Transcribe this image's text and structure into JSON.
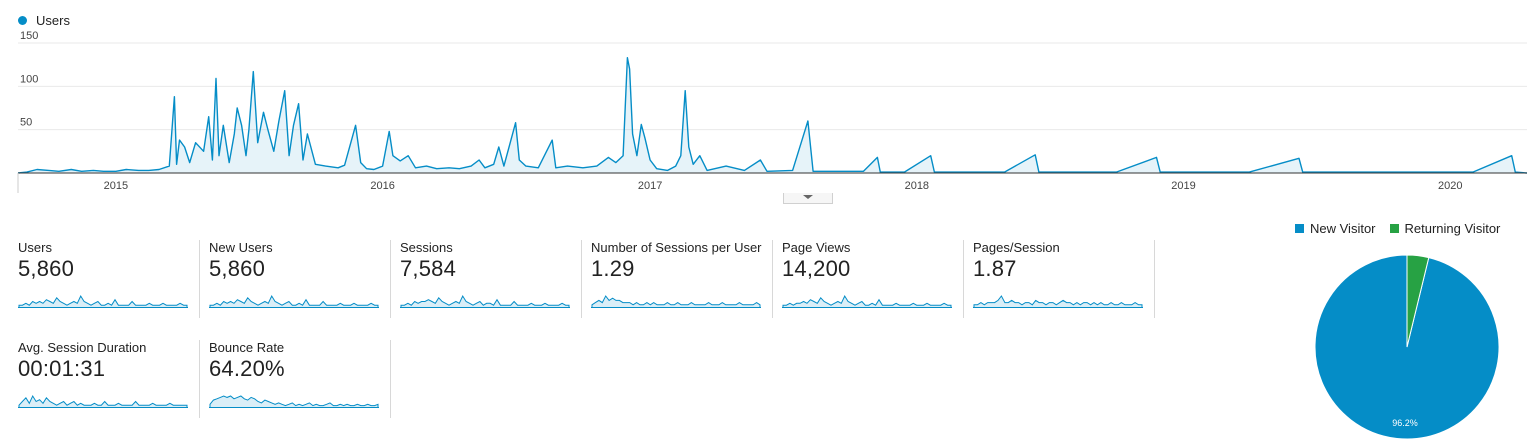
{
  "colors": {
    "primary": "#058dc7",
    "secondary": "#27a244",
    "axis": "#333333",
    "grid": "#e9e9e9",
    "text": "#444444"
  },
  "chart_data": [
    {
      "type": "line",
      "title": "",
      "series": [
        {
          "name": "Users",
          "points": [
            [
              "2014-09-01",
              1
            ],
            [
              "2014-09-15",
              4
            ],
            [
              "2014-10-01",
              3
            ],
            [
              "2014-10-15",
              2
            ],
            [
              "2014-11-01",
              4
            ],
            [
              "2014-11-15",
              2
            ],
            [
              "2014-12-01",
              3
            ],
            [
              "2014-12-15",
              2
            ],
            [
              "2015-01-01",
              2
            ],
            [
              "2015-01-15",
              4
            ],
            [
              "2015-02-01",
              3
            ],
            [
              "2015-02-15",
              3
            ],
            [
              "2015-03-01",
              4
            ],
            [
              "2015-03-15",
              8
            ],
            [
              "2015-03-22",
              88
            ],
            [
              "2015-03-25",
              10
            ],
            [
              "2015-03-29",
              38
            ],
            [
              "2015-04-05",
              30
            ],
            [
              "2015-04-12",
              12
            ],
            [
              "2015-04-20",
              35
            ],
            [
              "2015-05-01",
              25
            ],
            [
              "2015-05-08",
              65
            ],
            [
              "2015-05-13",
              15
            ],
            [
              "2015-05-18",
              109
            ],
            [
              "2015-05-22",
              20
            ],
            [
              "2015-05-28",
              55
            ],
            [
              "2015-06-05",
              12
            ],
            [
              "2015-06-12",
              45
            ],
            [
              "2015-06-16",
              75
            ],
            [
              "2015-06-22",
              55
            ],
            [
              "2015-06-28",
              20
            ],
            [
              "2015-07-02",
              50
            ],
            [
              "2015-07-08",
              117
            ],
            [
              "2015-07-14",
              35
            ],
            [
              "2015-07-22",
              70
            ],
            [
              "2015-07-28",
              50
            ],
            [
              "2015-08-05",
              25
            ],
            [
              "2015-08-12",
              60
            ],
            [
              "2015-08-20",
              95
            ],
            [
              "2015-08-26",
              20
            ],
            [
              "2015-09-01",
              55
            ],
            [
              "2015-09-08",
              80
            ],
            [
              "2015-09-14",
              15
            ],
            [
              "2015-09-20",
              45
            ],
            [
              "2015-10-01",
              10
            ],
            [
              "2015-10-15",
              8
            ],
            [
              "2015-11-01",
              6
            ],
            [
              "2015-11-10",
              9
            ],
            [
              "2015-11-25",
              55
            ],
            [
              "2015-12-02",
              12
            ],
            [
              "2015-12-10",
              5
            ],
            [
              "2015-12-20",
              4
            ],
            [
              "2016-01-01",
              8
            ],
            [
              "2016-01-10",
              48
            ],
            [
              "2016-01-15",
              20
            ],
            [
              "2016-01-25",
              14
            ],
            [
              "2016-02-05",
              20
            ],
            [
              "2016-02-15",
              6
            ],
            [
              "2016-03-01",
              8
            ],
            [
              "2016-03-15",
              5
            ],
            [
              "2016-04-01",
              6
            ],
            [
              "2016-04-15",
              5
            ],
            [
              "2016-05-01",
              8
            ],
            [
              "2016-05-12",
              15
            ],
            [
              "2016-05-20",
              6
            ],
            [
              "2016-06-01",
              10
            ],
            [
              "2016-06-08",
              30
            ],
            [
              "2016-06-15",
              8
            ],
            [
              "2016-07-01",
              58
            ],
            [
              "2016-07-06",
              15
            ],
            [
              "2016-07-15",
              8
            ],
            [
              "2016-08-01",
              6
            ],
            [
              "2016-08-20",
              38
            ],
            [
              "2016-08-25",
              6
            ],
            [
              "2016-09-10",
              8
            ],
            [
              "2016-10-01",
              6
            ],
            [
              "2016-10-20",
              8
            ],
            [
              "2016-11-05",
              18
            ],
            [
              "2016-11-15",
              12
            ],
            [
              "2016-11-25",
              20
            ],
            [
              "2016-12-01",
              133
            ],
            [
              "2016-12-04",
              120
            ],
            [
              "2016-12-08",
              45
            ],
            [
              "2016-12-14",
              20
            ],
            [
              "2016-12-20",
              56
            ],
            [
              "2016-12-25",
              40
            ],
            [
              "2017-01-01",
              15
            ],
            [
              "2017-01-10",
              5
            ],
            [
              "2017-01-25",
              3
            ],
            [
              "2017-02-05",
              8
            ],
            [
              "2017-02-12",
              20
            ],
            [
              "2017-02-18",
              95
            ],
            [
              "2017-02-23",
              30
            ],
            [
              "2017-03-01",
              10
            ],
            [
              "2017-03-10",
              20
            ],
            [
              "2017-03-20",
              3
            ],
            [
              "2017-04-15",
              8
            ],
            [
              "2017-05-10",
              3
            ],
            [
              "2017-06-01",
              15
            ],
            [
              "2017-06-10",
              2
            ],
            [
              "2017-07-15",
              3
            ],
            [
              "2017-08-05",
              60
            ],
            [
              "2017-08-12",
              2
            ],
            [
              "2017-09-15",
              2
            ],
            [
              "2017-10-20",
              2
            ],
            [
              "2017-11-08",
              18
            ],
            [
              "2017-11-12",
              1
            ],
            [
              "2017-12-15",
              1
            ],
            [
              "2018-01-20",
              20
            ],
            [
              "2018-01-25",
              1
            ],
            [
              "2018-03-15",
              1
            ],
            [
              "2018-05-01",
              1
            ],
            [
              "2018-06-12",
              21
            ],
            [
              "2018-06-17",
              1
            ],
            [
              "2018-08-01",
              1
            ],
            [
              "2018-10-01",
              1
            ],
            [
              "2018-11-25",
              18
            ],
            [
              "2018-11-30",
              1
            ],
            [
              "2019-02-01",
              1
            ],
            [
              "2019-04-01",
              1
            ],
            [
              "2019-06-08",
              17
            ],
            [
              "2019-06-13",
              1
            ],
            [
              "2019-09-01",
              1
            ],
            [
              "2019-12-01",
              1
            ],
            [
              "2020-02-01",
              1
            ],
            [
              "2020-03-25",
              20
            ],
            [
              "2020-03-30",
              1
            ]
          ]
        }
      ],
      "x_ticks": [
        "2015",
        "2016",
        "2017",
        "2018",
        "2019",
        "2020"
      ],
      "y_ticks": [
        50,
        100,
        150
      ],
      "ylim": [
        0,
        150
      ],
      "xlim": [
        "2014-08-20",
        "2020-04-15"
      ],
      "grid": true,
      "legend": "top-left"
    },
    {
      "type": "pie",
      "slices": [
        {
          "name": "New Visitor",
          "value": 96.2,
          "label": "96.2%"
        },
        {
          "name": "Returning Visitor",
          "value": 3.8,
          "label": ""
        }
      ],
      "legend": "top"
    }
  ],
  "metrics": [
    {
      "label": "Users",
      "value": "5,860",
      "trend": [
        1,
        1,
        2,
        1,
        3,
        2,
        3,
        2,
        4,
        3,
        2,
        5,
        3,
        2,
        1,
        2,
        3,
        2,
        6,
        3,
        2,
        1,
        2,
        3,
        1,
        1,
        2,
        1,
        4,
        1,
        1,
        1,
        1,
        3,
        1,
        1,
        1,
        1,
        2,
        1,
        1,
        1,
        2,
        1,
        1,
        1,
        1,
        2,
        1,
        1
      ]
    },
    {
      "label": "New Users",
      "value": "5,860",
      "trend": [
        1,
        1,
        2,
        1,
        3,
        2,
        3,
        2,
        4,
        3,
        2,
        5,
        3,
        2,
        1,
        2,
        3,
        2,
        6,
        3,
        2,
        1,
        2,
        3,
        1,
        1,
        2,
        1,
        4,
        1,
        1,
        1,
        1,
        3,
        1,
        1,
        1,
        1,
        2,
        1,
        1,
        1,
        2,
        1,
        1,
        1,
        1,
        2,
        1,
        1
      ]
    },
    {
      "label": "Sessions",
      "value": "7,584",
      "trend": [
        1,
        1,
        2,
        1,
        3,
        2,
        3,
        3,
        4,
        3,
        2,
        5,
        3,
        2,
        1,
        2,
        3,
        2,
        6,
        3,
        2,
        1,
        2,
        3,
        1,
        2,
        2,
        1,
        4,
        1,
        1,
        1,
        1,
        3,
        1,
        1,
        1,
        1,
        2,
        1,
        1,
        1,
        2,
        1,
        1,
        1,
        1,
        2,
        1,
        1
      ]
    },
    {
      "label": "Number of Sessions per User",
      "value": "1.29",
      "trend": [
        1,
        2,
        3,
        2,
        5,
        3,
        4,
        3,
        3,
        2,
        2,
        2,
        1,
        2,
        1,
        1,
        2,
        1,
        2,
        1,
        1,
        1,
        2,
        1,
        1,
        2,
        1,
        1,
        1,
        2,
        1,
        1,
        1,
        1,
        2,
        1,
        1,
        1,
        2,
        1,
        1,
        1,
        1,
        2,
        1,
        1,
        1,
        1,
        2,
        1
      ]
    },
    {
      "label": "Page Views",
      "value": "14,200",
      "trend": [
        1,
        1,
        2,
        1,
        2,
        2,
        3,
        2,
        4,
        3,
        2,
        5,
        3,
        2,
        1,
        2,
        3,
        2,
        6,
        3,
        2,
        1,
        2,
        3,
        1,
        1,
        2,
        1,
        4,
        1,
        1,
        1,
        1,
        2,
        1,
        1,
        1,
        1,
        2,
        1,
        1,
        1,
        2,
        1,
        1,
        1,
        1,
        2,
        1,
        1
      ]
    },
    {
      "label": "Pages/Session",
      "value": "1.87",
      "trend": [
        1,
        1,
        2,
        1,
        2,
        2,
        2,
        3,
        5,
        2,
        2,
        3,
        2,
        2,
        1,
        2,
        2,
        1,
        3,
        2,
        2,
        1,
        2,
        2,
        1,
        2,
        3,
        2,
        2,
        1,
        2,
        1,
        2,
        2,
        1,
        2,
        1,
        2,
        1,
        1,
        2,
        1,
        1,
        2,
        1,
        1,
        1,
        2,
        1,
        1
      ]
    },
    {
      "label": "Avg. Session Duration",
      "value": "00:01:31",
      "trend": [
        1,
        3,
        5,
        2,
        6,
        3,
        4,
        2,
        5,
        3,
        2,
        1,
        2,
        3,
        1,
        2,
        3,
        1,
        2,
        1,
        1,
        1,
        2,
        1,
        1,
        3,
        1,
        1,
        1,
        2,
        1,
        1,
        1,
        1,
        3,
        1,
        1,
        1,
        1,
        2,
        1,
        1,
        1,
        1,
        2,
        1,
        1,
        1,
        1,
        1
      ]
    },
    {
      "label": "Bounce Rate",
      "value": "64.20%",
      "trend": [
        2,
        5,
        6,
        7,
        8,
        7,
        8,
        6,
        7,
        8,
        6,
        5,
        7,
        6,
        4,
        3,
        5,
        4,
        3,
        2,
        3,
        2,
        1,
        2,
        3,
        1,
        2,
        1,
        2,
        3,
        1,
        2,
        1,
        1,
        2,
        3,
        1,
        1,
        2,
        1,
        2,
        1,
        1,
        2,
        1,
        1,
        2,
        1,
        1,
        2
      ]
    }
  ]
}
